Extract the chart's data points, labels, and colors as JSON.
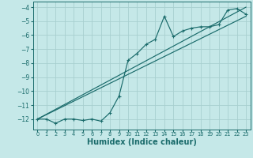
{
  "background_color": "#c5e8e8",
  "grid_color": "#a8cfcf",
  "line_color": "#1a6b6b",
  "xlabel": "Humidex (Indice chaleur)",
  "xlabel_fontsize": 7,
  "xlim": [
    -0.5,
    23.5
  ],
  "ylim": [
    -12.75,
    -3.6
  ],
  "yticks": [
    -12,
    -11,
    -10,
    -9,
    -8,
    -7,
    -6,
    -5,
    -4
  ],
  "xticks": [
    0,
    1,
    2,
    3,
    4,
    5,
    6,
    7,
    8,
    9,
    10,
    11,
    12,
    13,
    14,
    15,
    16,
    17,
    18,
    19,
    20,
    21,
    22,
    23
  ],
  "zigzag_x": [
    0,
    1,
    2,
    3,
    4,
    5,
    6,
    7,
    8,
    9,
    10,
    11,
    12,
    13,
    14,
    15,
    16,
    17,
    18,
    19,
    20,
    21,
    22,
    23
  ],
  "zigzag_y": [
    -12.0,
    -12.0,
    -12.3,
    -12.0,
    -12.0,
    -12.1,
    -12.0,
    -12.15,
    -11.55,
    -10.35,
    -7.8,
    -7.3,
    -6.65,
    -6.3,
    -4.65,
    -6.1,
    -5.7,
    -5.5,
    -5.4,
    -5.4,
    -5.25,
    -4.2,
    -4.1,
    -4.5
  ],
  "lower_line_x": [
    0,
    23
  ],
  "lower_line_y": [
    -12.0,
    -4.65
  ],
  "upper_line_x": [
    0,
    23
  ],
  "upper_line_y": [
    -12.0,
    -4.0
  ]
}
